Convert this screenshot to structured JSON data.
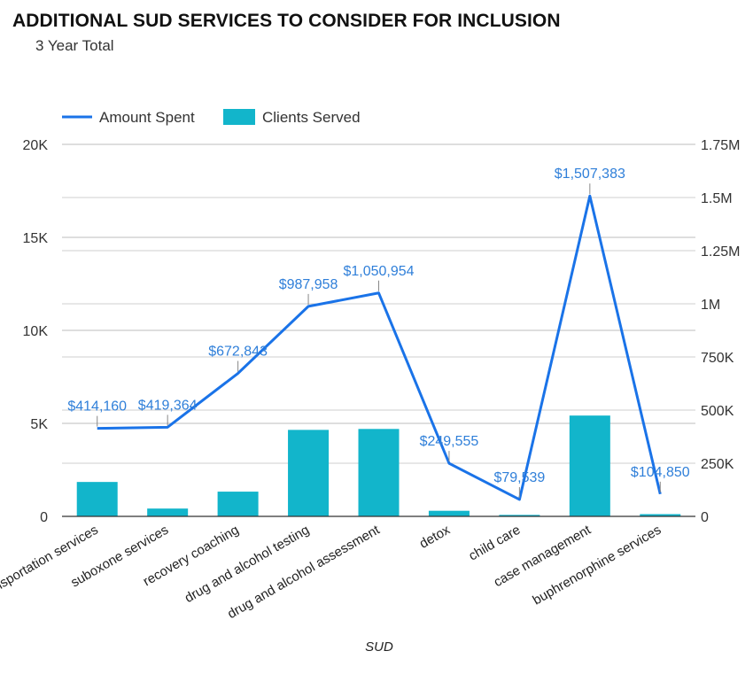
{
  "header": {
    "title": "ADDITIONAL SUD SERVICES TO CONSIDER FOR INCLUSION",
    "subtitle": "3 Year Total"
  },
  "chart_data": {
    "type": "bar",
    "categories": [
      "transportation services",
      "suboxone services",
      "recovery coaching",
      "drug and alcohol testing",
      "drug and alcohol assessment",
      "detox",
      "child care",
      "case management",
      "buphrenorphine services"
    ],
    "series": [
      {
        "name": "Amount Spent",
        "type": "line",
        "axis": "right",
        "color": "#1a73e8",
        "values": [
          414160,
          419364,
          672843,
          987958,
          1050954,
          249555,
          79539,
          1507383,
          104850
        ],
        "labels": [
          "$414,160",
          "$419,364",
          "$672,843",
          "$987,958",
          "$1,050,954",
          "$249,555",
          "$79,539",
          "$1,507,383",
          "$104,850"
        ]
      },
      {
        "name": "Clients Served",
        "type": "bar",
        "axis": "left",
        "color": "#12b5cb",
        "values": [
          1850,
          420,
          1330,
          4650,
          4700,
          300,
          80,
          5420,
          120
        ]
      }
    ],
    "xlabel": "SUD",
    "y_left": {
      "ticks": [
        "0",
        "5K",
        "10K",
        "15K",
        "20K"
      ],
      "tick_values": [
        0,
        5000,
        10000,
        15000,
        20000
      ],
      "range": [
        0,
        20000
      ]
    },
    "y_right": {
      "ticks": [
        "0",
        "250K",
        "500K",
        "750K",
        "1M",
        "1.25M",
        "1.5M",
        "1.75M"
      ],
      "tick_values": [
        0,
        250000,
        500000,
        750000,
        1000000,
        1250000,
        1500000,
        1750000
      ],
      "range": [
        0,
        1750000
      ]
    },
    "legend_position": "top-left",
    "grid": true
  }
}
